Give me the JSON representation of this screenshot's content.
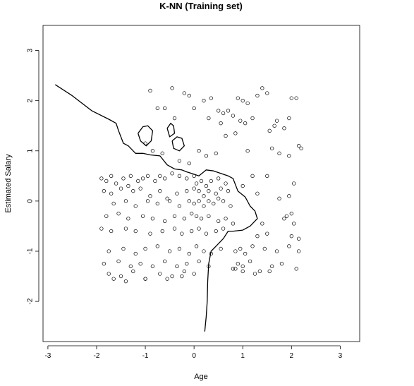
{
  "chart_data": {
    "type": "scatter",
    "title": "K-NN (Training set)",
    "xlabel": "Age",
    "ylabel": "Estimated Salary",
    "xlim": [
      -3.1,
      3.4
    ],
    "ylim": [
      -2.8,
      3.5
    ],
    "xticks": [
      -3,
      -2,
      -1,
      0,
      1,
      2,
      3
    ],
    "yticks": [
      -2,
      -1,
      0,
      1,
      2,
      3
    ],
    "xtick_labels": [
      "-3",
      "-2",
      "-1",
      "0",
      "1",
      "2",
      "3"
    ],
    "ytick_labels": [
      "-2",
      "-1",
      "0",
      "1",
      "2",
      "3"
    ],
    "grid": false,
    "legend": "none",
    "boundary": [
      [
        -2.85,
        2.32
      ],
      [
        -2.5,
        2.1
      ],
      [
        -2.1,
        1.8
      ],
      [
        -1.75,
        1.63
      ],
      [
        -1.6,
        1.55
      ],
      [
        -1.55,
        1.4
      ],
      [
        -1.45,
        1.15
      ],
      [
        -1.35,
        1.1
      ],
      [
        -1.2,
        0.95
      ],
      [
        -1.05,
        0.95
      ],
      [
        -0.9,
        0.92
      ],
      [
        -0.7,
        0.9
      ],
      [
        -0.55,
        0.72
      ],
      [
        -0.4,
        0.64
      ],
      [
        -0.25,
        0.62
      ],
      [
        -0.15,
        0.58
      ],
      [
        -0.05,
        0.55
      ],
      [
        0.1,
        0.5
      ],
      [
        0.25,
        0.62
      ],
      [
        0.4,
        0.6
      ],
      [
        0.55,
        0.55
      ],
      [
        0.7,
        0.5
      ],
      [
        0.8,
        0.45
      ],
      [
        0.9,
        0.2
      ],
      [
        1.05,
        0.08
      ],
      [
        1.15,
        -0.1
      ],
      [
        1.25,
        -0.2
      ],
      [
        1.3,
        -0.35
      ],
      [
        1.15,
        -0.5
      ],
      [
        1.0,
        -0.58
      ],
      [
        0.8,
        -0.6
      ],
      [
        0.7,
        -0.6
      ],
      [
        0.6,
        -0.75
      ],
      [
        0.45,
        -0.9
      ],
      [
        0.35,
        -1.0
      ],
      [
        0.3,
        -1.25
      ],
      [
        0.28,
        -1.6
      ],
      [
        0.27,
        -2.0
      ],
      [
        0.25,
        -2.3
      ],
      [
        0.22,
        -2.6
      ]
    ],
    "islands": [
      [
        [
          -1.15,
          1.35
        ],
        [
          -1.05,
          1.48
        ],
        [
          -0.95,
          1.5
        ],
        [
          -0.85,
          1.4
        ],
        [
          -0.88,
          1.2
        ],
        [
          -0.98,
          1.1
        ],
        [
          -1.1,
          1.2
        ],
        [
          -1.15,
          1.35
        ]
      ],
      [
        [
          -0.55,
          1.45
        ],
        [
          -0.48,
          1.55
        ],
        [
          -0.42,
          1.5
        ],
        [
          -0.4,
          1.35
        ],
        [
          -0.5,
          1.28
        ],
        [
          -0.55,
          1.45
        ]
      ],
      [
        [
          -0.45,
          1.2
        ],
        [
          -0.35,
          1.28
        ],
        [
          -0.25,
          1.25
        ],
        [
          -0.2,
          1.1
        ],
        [
          -0.3,
          1.0
        ],
        [
          -0.42,
          1.05
        ],
        [
          -0.45,
          1.2
        ]
      ]
    ],
    "points_x": [
      -0.9,
      -0.45,
      -0.2,
      -0.1,
      0.0,
      0.2,
      0.35,
      0.5,
      0.6,
      0.7,
      0.9,
      1.0,
      1.1,
      1.3,
      1.4,
      1.5,
      1.7,
      2.0,
      2.1,
      -0.75,
      -0.6,
      -0.4,
      0.3,
      0.55,
      0.8,
      0.95,
      1.05,
      1.2,
      1.55,
      1.65,
      1.85,
      1.95,
      2.15,
      -1.0,
      -0.85,
      -0.65,
      -0.3,
      -0.1,
      0.1,
      0.25,
      0.45,
      0.65,
      0.85,
      1.1,
      1.6,
      1.75,
      1.95,
      2.2,
      -1.9,
      -1.8,
      -1.7,
      -1.6,
      -1.45,
      -1.3,
      -1.15,
      -1.05,
      -0.95,
      -0.8,
      -0.7,
      -0.6,
      -0.45,
      -0.3,
      -0.15,
      0.0,
      0.05,
      0.15,
      0.25,
      0.35,
      0.5,
      0.65,
      -1.85,
      -1.7,
      -1.5,
      -1.35,
      -1.25,
      -1.1,
      -0.9,
      -0.7,
      -0.55,
      -0.35,
      -0.15,
      0.0,
      0.1,
      0.2,
      0.3,
      0.45,
      0.55,
      0.7,
      1.0,
      1.2,
      1.5,
      1.75,
      1.95,
      2.05,
      -1.65,
      -1.4,
      -1.2,
      -0.95,
      -0.75,
      -0.5,
      -0.3,
      -0.1,
      0.0,
      0.1,
      0.2,
      0.3,
      0.4,
      0.5,
      0.6,
      0.75,
      1.3,
      1.9,
      2.0,
      -1.8,
      -1.55,
      -1.35,
      -1.05,
      -0.85,
      -0.6,
      -0.4,
      -0.2,
      -0.05,
      0.05,
      0.15,
      0.3,
      0.5,
      0.65,
      0.8,
      1.4,
      1.85,
      2.05,
      -1.9,
      -1.7,
      -1.4,
      -1.2,
      -0.9,
      -0.65,
      -0.4,
      -0.25,
      -0.05,
      0.1,
      0.25,
      0.45,
      0.6,
      1.3,
      1.5,
      2.0,
      2.15,
      -1.75,
      -1.45,
      -1.2,
      -1.0,
      -0.75,
      -0.5,
      -0.3,
      -0.1,
      0.05,
      0.2,
      0.35,
      0.55,
      0.85,
      0.95,
      1.05,
      1.2,
      1.45,
      1.7,
      1.95,
      2.15,
      -1.85,
      -1.55,
      -1.3,
      -1.1,
      -0.85,
      -0.6,
      -0.35,
      -0.15,
      0.1,
      0.3,
      0.8,
      0.9,
      1.0,
      1.15,
      1.35,
      1.6,
      1.8,
      2.1,
      -1.75,
      -1.5,
      -1.25,
      -1.0,
      -0.7,
      -0.45,
      -0.2,
      0.0,
      0.85,
      1.0,
      1.25,
      1.55,
      -1.65,
      -1.4,
      -1.0,
      -0.55,
      -0.25
    ],
    "points_y": [
      2.2,
      2.25,
      2.15,
      2.1,
      1.85,
      2.0,
      2.05,
      1.8,
      1.75,
      1.8,
      2.05,
      2.0,
      1.95,
      2.1,
      2.25,
      2.15,
      1.6,
      2.05,
      2.05,
      1.85,
      1.85,
      1.65,
      1.65,
      1.55,
      1.7,
      1.6,
      1.55,
      1.65,
      1.4,
      1.5,
      1.45,
      1.65,
      1.1,
      1.15,
      1.0,
      0.95,
      0.8,
      0.75,
      1.0,
      0.9,
      0.95,
      1.3,
      1.35,
      1.0,
      1.05,
      0.95,
      0.9,
      1.05,
      0.45,
      0.4,
      0.5,
      0.35,
      0.45,
      0.5,
      0.4,
      0.45,
      0.5,
      0.4,
      0.5,
      0.45,
      0.55,
      0.5,
      0.45,
      0.5,
      0.35,
      0.4,
      0.3,
      0.4,
      0.45,
      0.35,
      0.2,
      0.15,
      0.25,
      0.3,
      0.2,
      0.25,
      0.1,
      0.2,
      0.05,
      0.15,
      0.2,
      0.25,
      0.2,
      0.1,
      0.2,
      0.15,
      0.25,
      0.2,
      0.3,
      0.5,
      0.5,
      0.05,
      0.1,
      0.35,
      -0.05,
      0.0,
      -0.1,
      0.0,
      -0.05,
      0.0,
      -0.1,
      0.0,
      -0.05,
      0.0,
      -0.1,
      0.0,
      -0.05,
      0.05,
      0.0,
      -0.1,
      0.15,
      -0.3,
      -0.25,
      -0.3,
      -0.25,
      -0.35,
      -0.3,
      -0.35,
      -0.4,
      -0.3,
      -0.35,
      -0.25,
      -0.3,
      -0.35,
      -0.3,
      -0.4,
      -0.35,
      -0.45,
      -0.45,
      -0.35,
      -0.45,
      -0.55,
      -0.6,
      -0.55,
      -0.6,
      -0.65,
      -0.6,
      -0.55,
      -0.65,
      -0.6,
      -0.55,
      -0.65,
      -0.6,
      -0.55,
      -0.7,
      -0.65,
      -0.7,
      -0.75,
      -1.0,
      -0.95,
      -1.05,
      -0.95,
      -0.9,
      -1.0,
      -0.95,
      -1.05,
      -0.9,
      -1.0,
      -1.05,
      -0.95,
      -1.0,
      -0.95,
      -1.05,
      -0.9,
      -0.95,
      -1.0,
      -0.9,
      -1.0,
      -1.25,
      -1.2,
      -1.3,
      -1.25,
      -1.3,
      -1.2,
      -1.3,
      -1.25,
      -1.2,
      -1.3,
      -1.35,
      -1.25,
      -1.3,
      -1.2,
      -1.4,
      -1.3,
      -1.25,
      -1.35,
      -1.45,
      -1.5,
      -1.4,
      -1.55,
      -1.45,
      -1.5,
      -1.4,
      -1.45,
      -1.35,
      -1.4,
      -1.45,
      -1.4,
      -1.55,
      -1.6,
      -1.55,
      -1.55,
      -1.5
    ]
  }
}
